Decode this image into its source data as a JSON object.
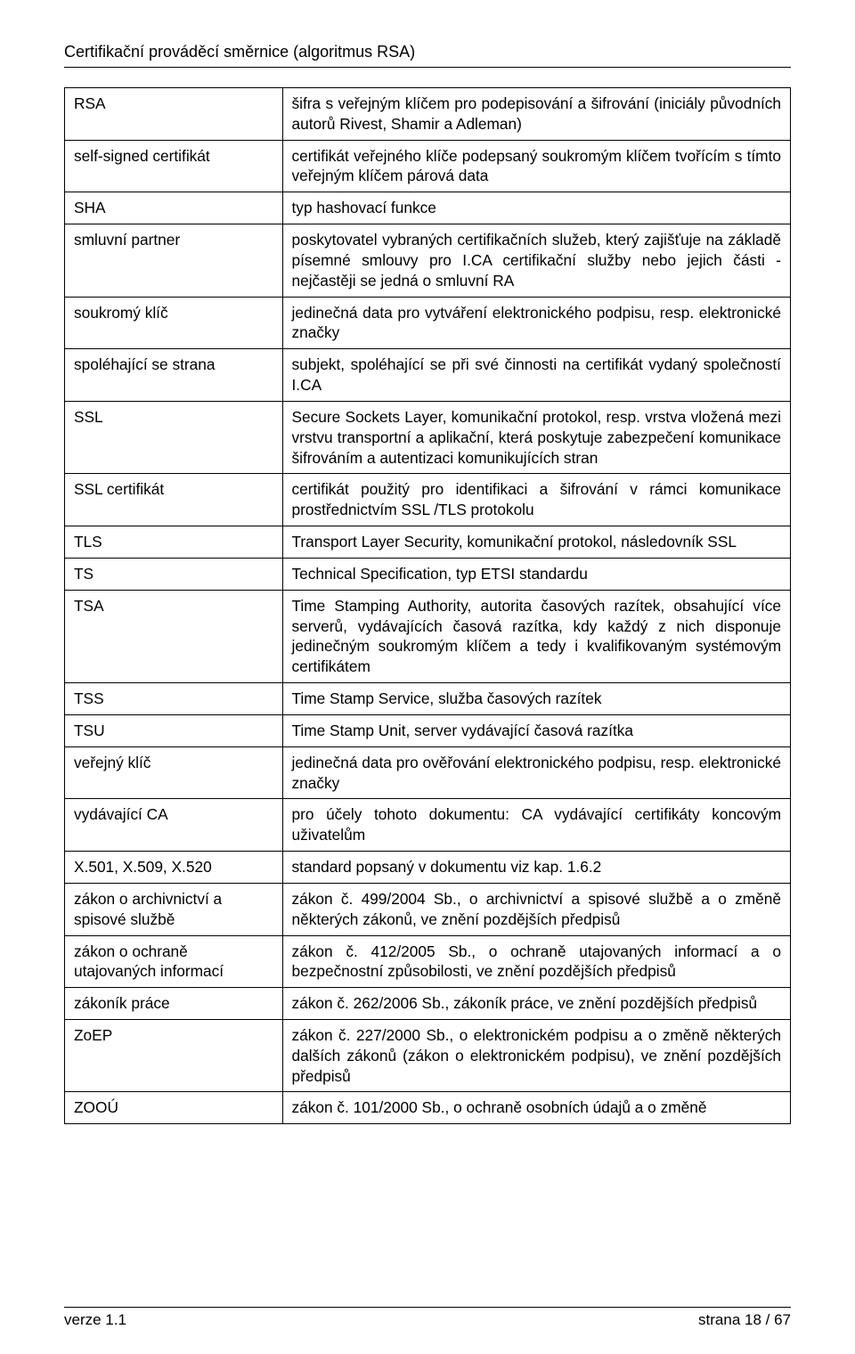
{
  "header": {
    "title": "Certifikační prováděcí směrnice (algoritmus RSA)"
  },
  "rows": [
    {
      "term": "RSA",
      "def": "šifra s veřejným klíčem pro podepisování a šifrování (iniciály původních autorů Rivest, Shamir a Adleman)"
    },
    {
      "term": "self-signed certifikát",
      "def": "certifikát veřejného klíče podepsaný soukromým klíčem tvořícím s tímto veřejným klíčem párová data"
    },
    {
      "term": "SHA",
      "def": "typ hashovací funkce"
    },
    {
      "term": "smluvní partner",
      "def": "poskytovatel vybraných certifikačních služeb, který zajišťuje na základě písemné smlouvy pro I.CA certifikační služby nebo jejich části - nejčastěji se jedná o smluvní RA"
    },
    {
      "term": "soukromý klíč",
      "def": "jedinečná data pro vytváření elektronického podpisu, resp. elektronické značky"
    },
    {
      "term": "spoléhající se strana",
      "def": "subjekt, spoléhající se při své činnosti na certifikát vydaný společností I.CA"
    },
    {
      "term": "SSL",
      "def": "Secure Sockets Layer, komunikační protokol, resp. vrstva vložená mezi vrstvu transportní a aplikační, která poskytuje zabezpečení komunikace šifrováním a autentizaci komunikujících stran"
    },
    {
      "term": "SSL certifikát",
      "def": "certifikát použitý pro identifikaci a šifrování v rámci komunikace prostřednictvím SSL /TLS protokolu"
    },
    {
      "term": "TLS",
      "def": "Transport Layer Security, komunikační protokol, následovník SSL"
    },
    {
      "term": "TS",
      "def": "Technical Specification, typ ETSI standardu"
    },
    {
      "term": "TSA",
      "def": "Time Stamping Authority, autorita časových razítek, obsahující více serverů, vydávajících časová razítka, kdy každý z nich disponuje jedinečným soukromým klíčem a tedy i kvalifikovaným systémovým certifikátem"
    },
    {
      "term": "TSS",
      "def": "Time Stamp Service, služba časových razítek"
    },
    {
      "term": "TSU",
      "def": "Time Stamp Unit, server vydávající časová razítka"
    },
    {
      "term": "veřejný klíč",
      "def": "jedinečná data pro ověřování elektronického podpisu, resp. elektronické značky"
    },
    {
      "term": "vydávající CA",
      "def": "pro účely tohoto dokumentu: CA vydávající certifikáty koncovým uživatelům"
    },
    {
      "term": "X.501, X.509, X.520",
      "def": "standard popsaný v dokumentu viz kap. 1.6.2"
    },
    {
      "term": "zákon o archivnictví a spisové službě",
      "def": "zákon č. 499/2004 Sb., o archivnictví a spisové službě a o změně některých zákonů, ve znění pozdějších předpisů"
    },
    {
      "term": "zákon o ochraně utajovaných informací",
      "def": "zákon č. 412/2005 Sb., o ochraně utajovaných informací a o bezpečnostní způsobilosti, ve znění pozdějších předpisů"
    },
    {
      "term": "zákoník práce",
      "def": "zákon č. 262/2006 Sb., zákoník práce, ve znění pozdějších předpisů"
    },
    {
      "term": "ZoEP",
      "def": "zákon č. 227/2000 Sb., o elektronickém podpisu a o změně některých dalších zákonů (zákon o elektronickém podpisu), ve znění pozdějších předpisů"
    },
    {
      "term": "ZOOÚ",
      "def": "zákon č. 101/2000 Sb., o ochraně osobních údajů a o změně"
    }
  ],
  "footer": {
    "left": "verze 1.1",
    "right": "strana 18 / 67"
  }
}
